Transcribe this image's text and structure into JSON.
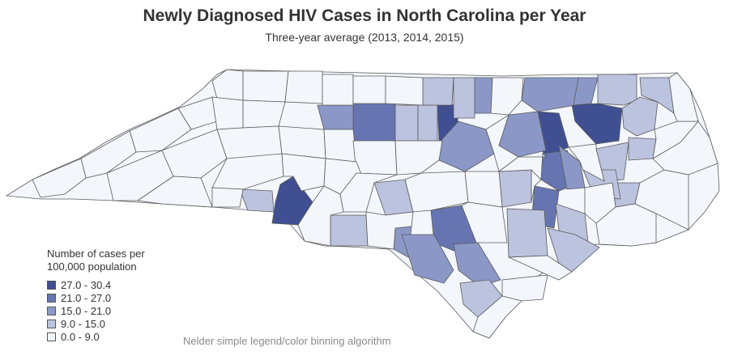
{
  "title": "Newly Diagnosed HIV Cases in North Carolina per Year",
  "subtitle": "Three-year average (2013, 2014, 2015)",
  "footnote": "Nelder simple legend/color binning algorithm",
  "colors": {
    "bin1": "#f3f6fb",
    "bin2": "#bcc3df",
    "bin3": "#8b98c7",
    "bin4": "#6675b1",
    "bin5": "#3f4f91",
    "border": "#555555"
  },
  "legend": {
    "title": "Number of cases per 100,000 population",
    "bins": [
      {
        "label": "27.0 - 30.4",
        "color": "#3f4f91"
      },
      {
        "label": "21.0 - 27.0",
        "color": "#6675b1"
      },
      {
        "label": "15.0 - 21.0",
        "color": "#8b98c7"
      },
      {
        "label": "9.0 - 15.0",
        "color": "#bcc3df"
      },
      {
        "label": "0.0 - 9.0",
        "color": "#f3f6fb"
      }
    ]
  },
  "map": {
    "region": "North Carolina",
    "highlighted_regions": [
      {
        "name": "Mecklenburg",
        "bin": 5
      },
      {
        "name": "Durham",
        "bin": 5
      },
      {
        "name": "Edgecombe",
        "bin": 5
      },
      {
        "name": "Guilford",
        "bin": 4
      },
      {
        "name": "Forsyth",
        "bin": 4
      },
      {
        "name": "Richmond",
        "bin": 4
      },
      {
        "name": "Wayne",
        "bin": 4
      },
      {
        "name": "Halifax",
        "bin": 3
      },
      {
        "name": "Wake",
        "bin": 3
      },
      {
        "name": "Cumberland",
        "bin": 3
      },
      {
        "name": "Robeson",
        "bin": 3
      }
    ]
  }
}
